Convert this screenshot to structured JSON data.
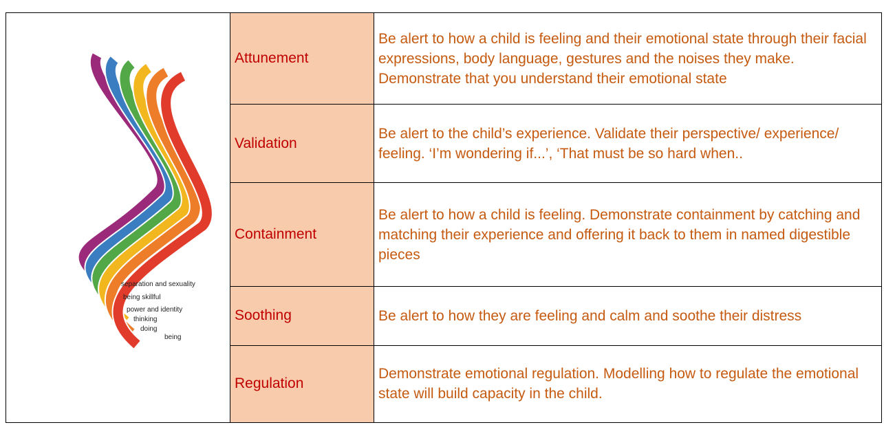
{
  "image": {
    "labels": [
      "separation and sexuality",
      "being skillful",
      "power and identity",
      "thinking",
      "doing",
      "being"
    ]
  },
  "table": {
    "rows": [
      [
        "Attunement",
        "Be alert to how a child is feeling and their emotional state through their facial expressions, body language, gestures and the noises they make. Demonstrate that you understand their emotional state"
      ],
      [
        "Validation",
        "Be alert to the child’s experience. Validate their perspective/ experience/ feeling. ‘I’m wondering if...’, ‘That must be so hard when.."
      ],
      [
        "Containment",
        "Be alert to how a child is feeling. Demonstrate containment by catching and matching their experience and offering it back to them in named digestible pieces"
      ],
      [
        "Soothing",
        "Be alert to how they are feeling and calm and soothe their distress"
      ],
      [
        "Regulation",
        "Demonstrate emotional regulation. Modelling how to regulate the emotional state will build capacity in the child."
      ]
    ]
  }
}
